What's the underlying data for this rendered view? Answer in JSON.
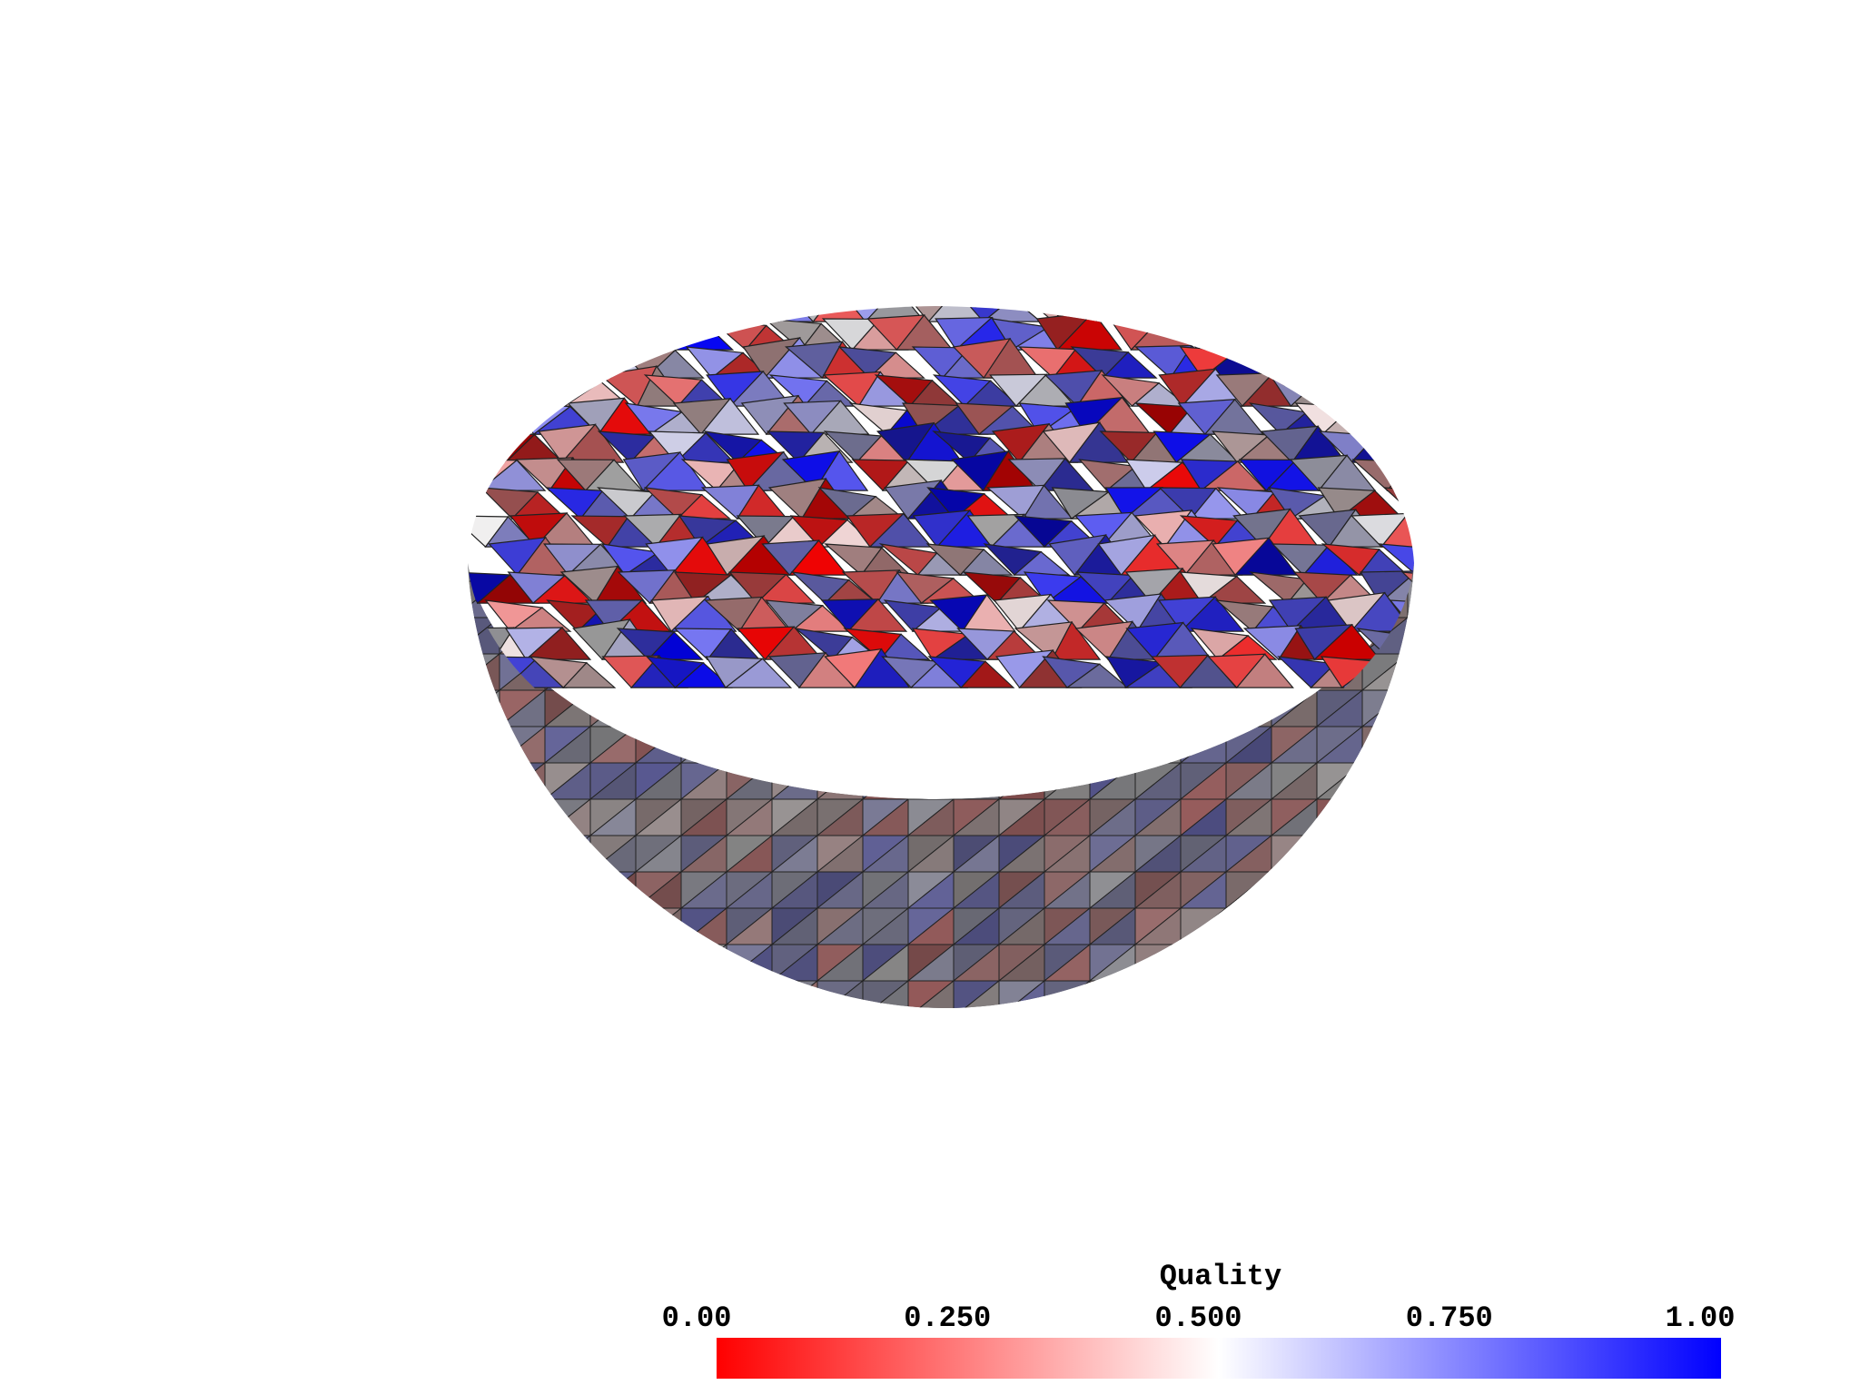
{
  "chart_data": {
    "type": "mesh",
    "title": "Quality",
    "clim": [
      0,
      1
    ],
    "ticks": [
      {
        "value": 0,
        "label": "0.00"
      },
      {
        "value": 0.25,
        "label": "0.250"
      },
      {
        "value": 0.5,
        "label": "0.500"
      },
      {
        "value": 0.75,
        "label": "0.750"
      },
      {
        "value": 1,
        "label": "1.00"
      }
    ],
    "colormap": [
      "#ff0000",
      "#ffffff",
      "#0000ff"
    ]
  }
}
